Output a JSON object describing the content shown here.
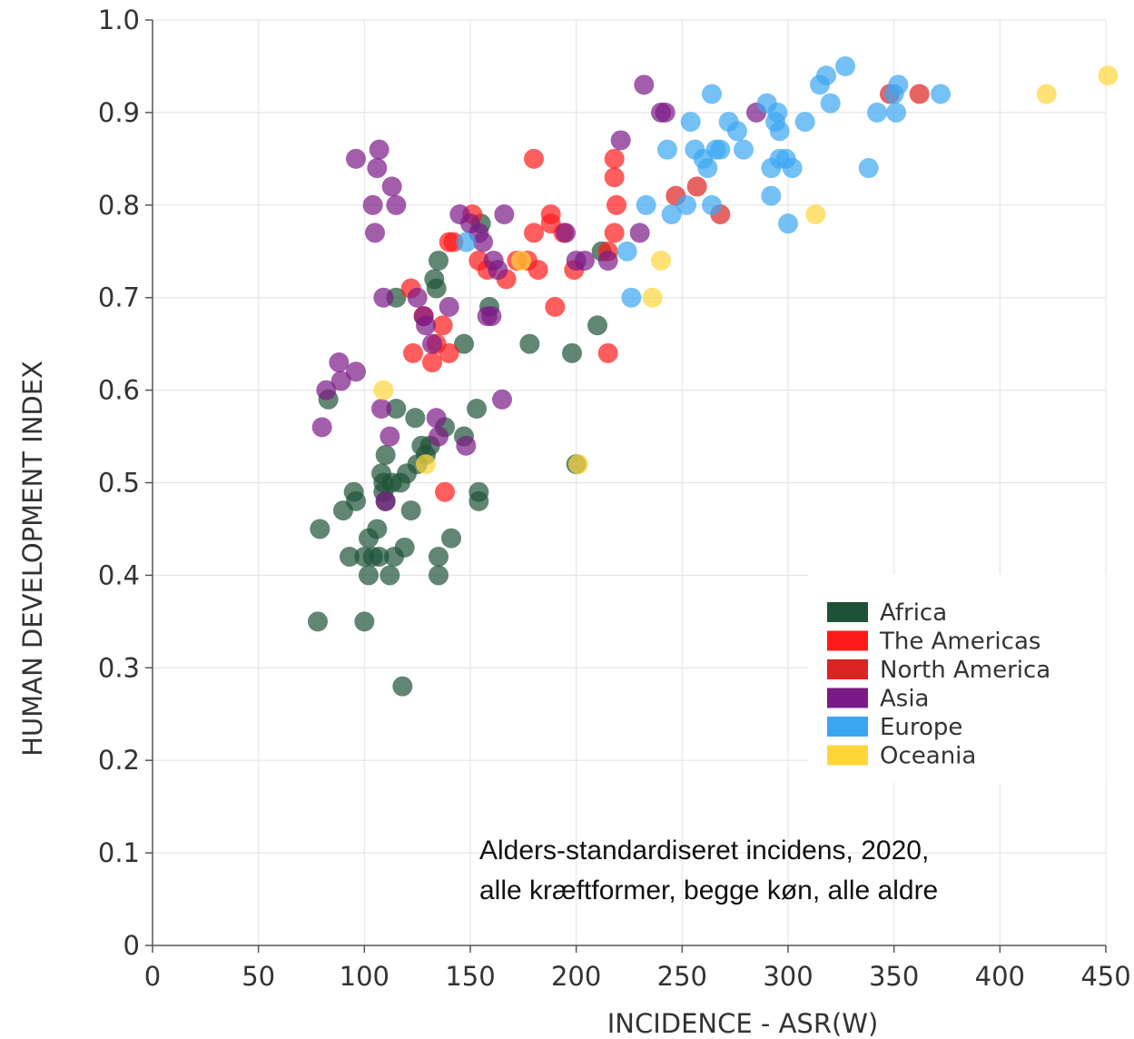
{
  "chart_data": {
    "type": "scatter",
    "title": "",
    "xlabel": "INCIDENCE - ASR(W)",
    "ylabel": "HUMAN DEVELOPMENT INDEX",
    "xlim": [
      0,
      450
    ],
    "ylim": [
      0,
      1.0
    ],
    "x_ticks": [
      0,
      50,
      100,
      150,
      200,
      250,
      300,
      350,
      400,
      450
    ],
    "y_ticks": [
      0,
      0.1,
      0.2,
      0.3,
      0.4,
      0.5,
      0.6,
      0.7,
      0.8,
      0.9,
      1.0
    ],
    "x_tick_labels": [
      "0",
      "50",
      "100",
      "150",
      "200",
      "250",
      "300",
      "350",
      "400",
      "450"
    ],
    "y_tick_labels": [
      "0",
      "0.1",
      "0.2",
      "0.3",
      "0.4",
      "0.5",
      "0.6",
      "0.7",
      "0.8",
      "0.9",
      "1.0"
    ],
    "grid": true,
    "legend_position": "bottom-right",
    "annotation": [
      "Alders-standardiseret incidens, 2020,",
      "alle kræftformer, begge køn, alle aldre"
    ],
    "series": [
      {
        "name": "Africa",
        "color": "#1e5238",
        "points": [
          [
            78,
            0.35
          ],
          [
            79,
            0.45
          ],
          [
            83,
            0.59
          ],
          [
            90,
            0.47
          ],
          [
            93,
            0.42
          ],
          [
            95,
            0.49
          ],
          [
            96,
            0.48
          ],
          [
            100,
            0.35
          ],
          [
            100,
            0.42
          ],
          [
            102,
            0.4
          ],
          [
            102,
            0.44
          ],
          [
            104,
            0.42
          ],
          [
            106,
            0.45
          ],
          [
            107,
            0.42
          ],
          [
            108,
            0.51
          ],
          [
            109,
            0.5
          ],
          [
            109,
            0.49
          ],
          [
            110,
            0.53
          ],
          [
            110,
            0.48
          ],
          [
            112,
            0.4
          ],
          [
            113,
            0.5
          ],
          [
            114,
            0.42
          ],
          [
            115,
            0.7
          ],
          [
            115,
            0.58
          ],
          [
            117,
            0.5
          ],
          [
            118,
            0.28
          ],
          [
            119,
            0.43
          ],
          [
            120,
            0.51
          ],
          [
            122,
            0.47
          ],
          [
            124,
            0.57
          ],
          [
            125,
            0.52
          ],
          [
            127,
            0.54
          ],
          [
            129,
            0.53
          ],
          [
            131,
            0.54
          ],
          [
            133,
            0.72
          ],
          [
            134,
            0.71
          ],
          [
            135,
            0.74
          ],
          [
            135,
            0.42
          ],
          [
            135,
            0.4
          ],
          [
            138,
            0.56
          ],
          [
            141,
            0.44
          ],
          [
            147,
            0.65
          ],
          [
            147,
            0.55
          ],
          [
            153,
            0.58
          ],
          [
            154,
            0.49
          ],
          [
            154,
            0.48
          ],
          [
            155,
            0.78
          ],
          [
            159,
            0.69
          ],
          [
            178,
            0.65
          ],
          [
            198,
            0.64
          ],
          [
            200,
            0.52
          ],
          [
            210,
            0.67
          ],
          [
            212,
            0.75
          ]
        ]
      },
      {
        "name": "The Americas",
        "color": "#ff1a1a",
        "points": [
          [
            122,
            0.71
          ],
          [
            123,
            0.64
          ],
          [
            128,
            0.68
          ],
          [
            132,
            0.63
          ],
          [
            134,
            0.65
          ],
          [
            137,
            0.67
          ],
          [
            138,
            0.49
          ],
          [
            140,
            0.76
          ],
          [
            140,
            0.64
          ],
          [
            142,
            0.76
          ],
          [
            151,
            0.79
          ],
          [
            154,
            0.74
          ],
          [
            158,
            0.73
          ],
          [
            167,
            0.72
          ],
          [
            172,
            0.74
          ],
          [
            177,
            0.74
          ],
          [
            180,
            0.77
          ],
          [
            180,
            0.85
          ],
          [
            182,
            0.73
          ],
          [
            188,
            0.79
          ],
          [
            188,
            0.78
          ],
          [
            190,
            0.69
          ],
          [
            194,
            0.77
          ],
          [
            199,
            0.73
          ],
          [
            215,
            0.64
          ],
          [
            215,
            0.75
          ],
          [
            218,
            0.85
          ],
          [
            218,
            0.77
          ],
          [
            219,
            0.8
          ],
          [
            218,
            0.83
          ]
        ]
      },
      {
        "name": "North America",
        "color": "#dd2222",
        "points": [
          [
            247,
            0.81
          ],
          [
            257,
            0.82
          ],
          [
            268,
            0.79
          ],
          [
            348,
            0.92
          ],
          [
            362,
            0.92
          ]
        ]
      },
      {
        "name": "Asia",
        "color": "#7a1a86",
        "points": [
          [
            80,
            0.56
          ],
          [
            82,
            0.6
          ],
          [
            88,
            0.63
          ],
          [
            89,
            0.61
          ],
          [
            96,
            0.85
          ],
          [
            96,
            0.62
          ],
          [
            104,
            0.8
          ],
          [
            105,
            0.77
          ],
          [
            106,
            0.84
          ],
          [
            107,
            0.86
          ],
          [
            108,
            0.58
          ],
          [
            109,
            0.7
          ],
          [
            110,
            0.48
          ],
          [
            112,
            0.55
          ],
          [
            113,
            0.82
          ],
          [
            115,
            0.8
          ],
          [
            125,
            0.7
          ],
          [
            128,
            0.68
          ],
          [
            129,
            0.67
          ],
          [
            132,
            0.65
          ],
          [
            134,
            0.57
          ],
          [
            135,
            0.55
          ],
          [
            140,
            0.69
          ],
          [
            145,
            0.79
          ],
          [
            148,
            0.54
          ],
          [
            150,
            0.78
          ],
          [
            154,
            0.77
          ],
          [
            156,
            0.76
          ],
          [
            158,
            0.68
          ],
          [
            160,
            0.68
          ],
          [
            161,
            0.74
          ],
          [
            163,
            0.73
          ],
          [
            165,
            0.59
          ],
          [
            166,
            0.79
          ],
          [
            195,
            0.77
          ],
          [
            200,
            0.74
          ],
          [
            204,
            0.74
          ],
          [
            215,
            0.74
          ],
          [
            221,
            0.87
          ],
          [
            230,
            0.77
          ],
          [
            232,
            0.93
          ],
          [
            240,
            0.9
          ],
          [
            242,
            0.9
          ],
          [
            285,
            0.9
          ]
        ]
      },
      {
        "name": "Europe",
        "color": "#3aa6f2",
        "points": [
          [
            148,
            0.76
          ],
          [
            224,
            0.75
          ],
          [
            226,
            0.7
          ],
          [
            233,
            0.8
          ],
          [
            243,
            0.86
          ],
          [
            245,
            0.79
          ],
          [
            252,
            0.8
          ],
          [
            254,
            0.89
          ],
          [
            256,
            0.86
          ],
          [
            260,
            0.85
          ],
          [
            262,
            0.84
          ],
          [
            264,
            0.92
          ],
          [
            264,
            0.8
          ],
          [
            266,
            0.86
          ],
          [
            268,
            0.86
          ],
          [
            272,
            0.89
          ],
          [
            276,
            0.88
          ],
          [
            279,
            0.86
          ],
          [
            290,
            0.91
          ],
          [
            292,
            0.81
          ],
          [
            292,
            0.84
          ],
          [
            294,
            0.89
          ],
          [
            295,
            0.9
          ],
          [
            296,
            0.88
          ],
          [
            296,
            0.85
          ],
          [
            299,
            0.85
          ],
          [
            300,
            0.78
          ],
          [
            302,
            0.84
          ],
          [
            308,
            0.89
          ],
          [
            315,
            0.93
          ],
          [
            318,
            0.94
          ],
          [
            320,
            0.91
          ],
          [
            327,
            0.95
          ],
          [
            338,
            0.84
          ],
          [
            342,
            0.9
          ],
          [
            350,
            0.92
          ],
          [
            351,
            0.9
          ],
          [
            352,
            0.93
          ],
          [
            372,
            0.92
          ]
        ]
      },
      {
        "name": "Oceania",
        "color": "#ffd63a",
        "points": [
          [
            109,
            0.6
          ],
          [
            129,
            0.52
          ],
          [
            174,
            0.74
          ],
          [
            201,
            0.52
          ],
          [
            236,
            0.7
          ],
          [
            240,
            0.74
          ],
          [
            313,
            0.79
          ],
          [
            422,
            0.92
          ],
          [
            451,
            0.94
          ]
        ]
      }
    ]
  }
}
